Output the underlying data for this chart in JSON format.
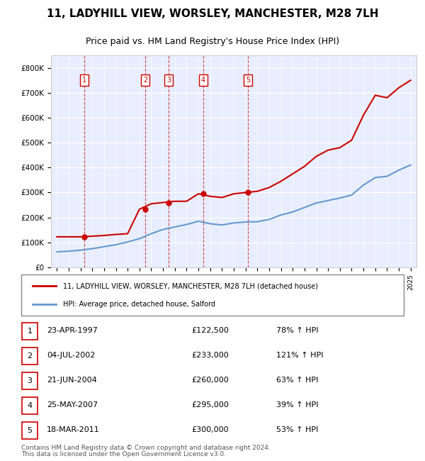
{
  "title1": "11, LADYHILL VIEW, WORSLEY, MANCHESTER, M28 7LH",
  "title2": "Price paid vs. HM Land Registry's House Price Index (HPI)",
  "ylabel": "",
  "background_color": "#f0f4ff",
  "plot_bg": "#e8eeff",
  "red_color": "#cc0000",
  "blue_color": "#6699cc",
  "sale_points": [
    {
      "year": 1997.31,
      "price": 122500,
      "label": "1"
    },
    {
      "year": 2002.5,
      "price": 233000,
      "label": "2"
    },
    {
      "year": 2004.47,
      "price": 260000,
      "label": "3"
    },
    {
      "year": 2007.4,
      "price": 295000,
      "label": "4"
    },
    {
      "year": 2011.21,
      "price": 300000,
      "label": "5"
    }
  ],
  "sale_dates": [
    "23-APR-1997",
    "04-JUL-2002",
    "21-JUN-2004",
    "25-MAY-2007",
    "18-MAR-2011"
  ],
  "sale_prices": [
    "£122,500",
    "£233,000",
    "£260,000",
    "£295,000",
    "£300,000"
  ],
  "sale_pcts": [
    "78% ↑ HPI",
    "121% ↑ HPI",
    "63% ↑ HPI",
    "39% ↑ HPI",
    "53% ↑ HPI"
  ],
  "legend_red": "11, LADYHILL VIEW, WORSLEY, MANCHESTER, M28 7LH (detached house)",
  "legend_blue": "HPI: Average price, detached house, Salford",
  "footer1": "Contains HM Land Registry data © Crown copyright and database right 2024.",
  "footer2": "This data is licensed under the Open Government Licence v3.0.",
  "hpi_data": {
    "years": [
      1995,
      1996,
      1997,
      1998,
      1999,
      2000,
      2001,
      2002,
      2003,
      2004,
      2005,
      2006,
      2007,
      2008,
      2009,
      2010,
      2011,
      2012,
      2013,
      2014,
      2015,
      2016,
      2017,
      2018,
      2019,
      2020,
      2021,
      2022,
      2023,
      2024,
      2025
    ],
    "hpi_values": [
      62000,
      65000,
      69000,
      75000,
      83000,
      91000,
      102000,
      115000,
      135000,
      152000,
      162000,
      172000,
      185000,
      175000,
      170000,
      178000,
      182000,
      183000,
      192000,
      210000,
      222000,
      240000,
      258000,
      268000,
      278000,
      290000,
      330000,
      360000,
      365000,
      390000,
      410000
    ],
    "price_line": [
      122500,
      122500,
      122500,
      125000,
      128000,
      132000,
      135000,
      233000,
      255000,
      260000,
      265000,
      265000,
      295000,
      285000,
      280000,
      295000,
      300000,
      305000,
      320000,
      345000,
      375000,
      405000,
      445000,
      470000,
      480000,
      510000,
      610000,
      690000,
      680000,
      720000,
      750000
    ]
  }
}
